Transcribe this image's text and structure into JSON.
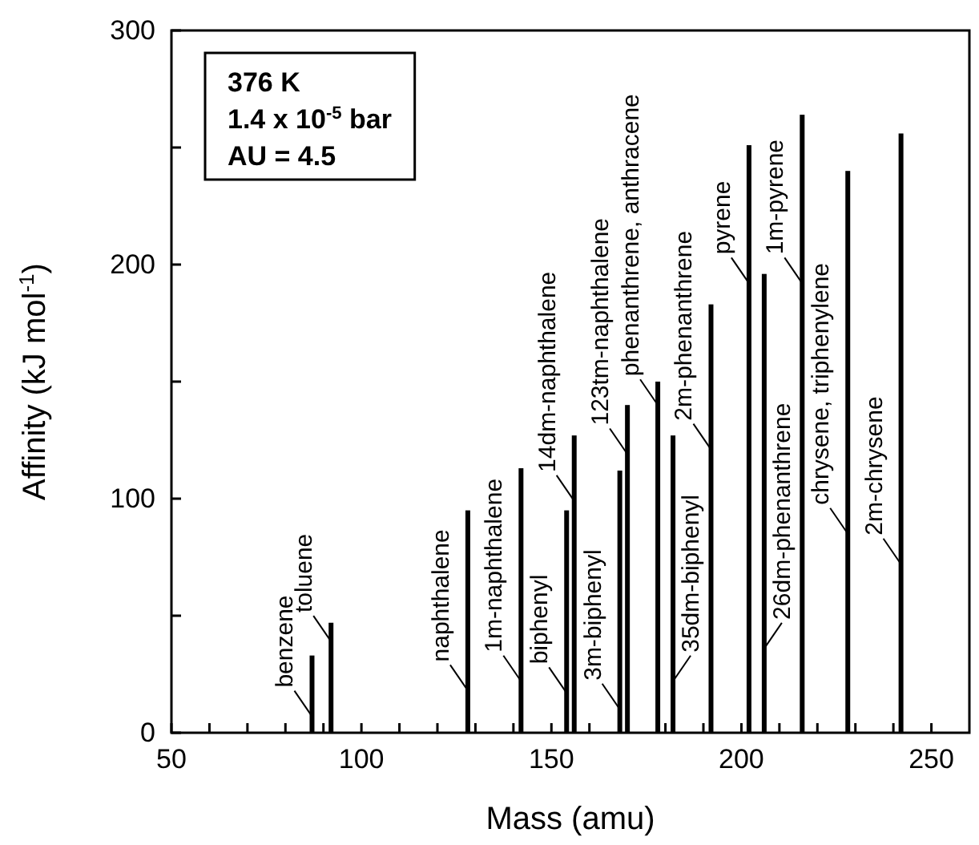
{
  "chart_data": {
    "type": "bar",
    "xlabel": "Mass (amu)",
    "ylabel": "Affinity (kJ mol$^{-1}$)",
    "x": [
      87,
      92,
      128,
      142,
      154,
      156,
      168,
      170,
      178,
      182,
      192,
      202,
      206,
      216,
      228,
      242
    ],
    "values": [
      33,
      47,
      95,
      113,
      95,
      127,
      112,
      140,
      150,
      127,
      183,
      251,
      196,
      264,
      240,
      256
    ],
    "color": "#000000",
    "xlim": [
      50,
      260
    ],
    "xticks": [
      50,
      {
        "value": 60,
        "label": null
      },
      {
        "value": 70,
        "label": null
      },
      {
        "value": 80,
        "label": null
      },
      {
        "value": 90,
        "label": null
      },
      100,
      {
        "value": 110,
        "label": null
      },
      {
        "value": 120,
        "label": null
      },
      {
        "value": 130,
        "label": null
      },
      {
        "value": 140,
        "label": null
      },
      150,
      {
        "value": 160,
        "label": null
      },
      {
        "value": 170,
        "label": null
      },
      {
        "value": 180,
        "label": null
      },
      {
        "value": 190,
        "label": null
      },
      200,
      {
        "value": 210,
        "label": null
      },
      {
        "value": 220,
        "label": null
      },
      {
        "value": 230,
        "label": null
      },
      {
        "value": 240,
        "label": null
      },
      250
    ],
    "ylim": [
      0,
      300
    ],
    "yticks": [
      0,
      {
        "value": 50,
        "label": null
      },
      100,
      {
        "value": 150,
        "label": null
      },
      200,
      {
        "value": 250,
        "label": null
      },
      300
    ],
    "annotations": [
      "376 K",
      "1.4 x 10$^{-5}$ bar",
      "AU = 4.5",
      {
        "text": "benzene",
        "x": 87,
        "y": 7
      },
      {
        "text": "toluene",
        "x": 92,
        "y": 39
      },
      {
        "text": "naphthalene",
        "x": 128,
        "y": 18
      },
      {
        "text": "1m-naphthalene",
        "x": 142,
        "y": 22
      },
      {
        "text": "biphenyl",
        "x": 154,
        "y": 17
      },
      {
        "text": "14dm-naphthalene",
        "x": 156,
        "y": 99
      },
      {
        "text": "3m-biphenyl",
        "x": 168,
        "y": 10
      },
      {
        "text": "123tm-naphthalene",
        "x": 170,
        "y": 119
      },
      {
        "text": "phenanthrene, anthracene",
        "x": 178,
        "y": 140
      },
      {
        "text": "35dm-biphenyl",
        "x": 182,
        "y": 22
      },
      {
        "text": "2m-phenanthrene",
        "x": 192,
        "y": 121
      },
      {
        "text": "pyrene",
        "x": 202,
        "y": 192
      },
      {
        "text": "26dm-phenanthrene",
        "x": 206,
        "y": 36
      },
      {
        "text": "1m-pyrene",
        "x": 216,
        "y": 192
      },
      {
        "text": "chrysene, triphenylene",
        "x": 228,
        "y": 85
      },
      {
        "text": "2m-chrysene",
        "x": 242,
        "y": 72
      }
    ]
  }
}
